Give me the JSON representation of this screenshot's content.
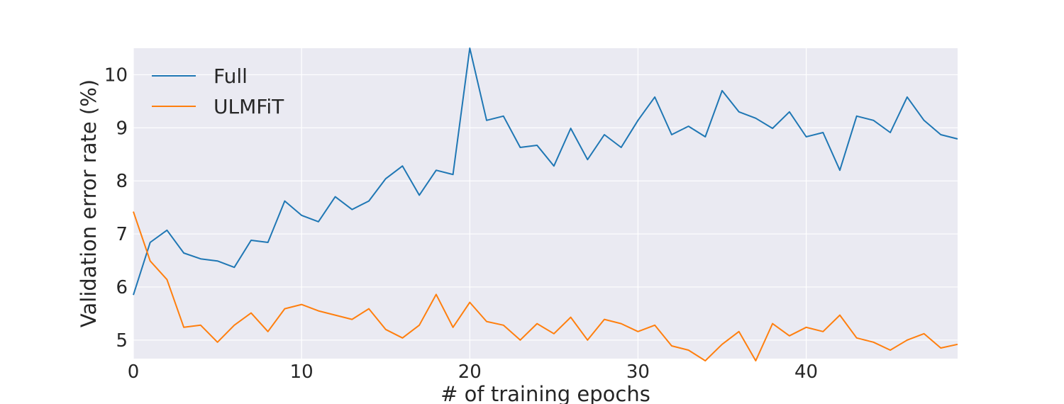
{
  "chart_data": {
    "type": "line",
    "title": "",
    "xlabel": "# of training epochs",
    "ylabel": "Validation error rate (%)",
    "xlim": [
      0,
      49
    ],
    "ylim": [
      4.65,
      10.5
    ],
    "xticks": [
      0,
      10,
      20,
      30,
      40
    ],
    "yticks": [
      5,
      6,
      7,
      8,
      9,
      10
    ],
    "grid": true,
    "legend_position": "top-left",
    "background": "#eaeaf2",
    "x": [
      0,
      1,
      2,
      3,
      4,
      5,
      6,
      7,
      8,
      9,
      10,
      11,
      12,
      13,
      14,
      15,
      16,
      17,
      18,
      19,
      20,
      21,
      22,
      23,
      24,
      25,
      26,
      27,
      28,
      29,
      30,
      31,
      32,
      33,
      34,
      35,
      36,
      37,
      38,
      39,
      40,
      41,
      42,
      43,
      44,
      45,
      46,
      47,
      48,
      49
    ],
    "series": [
      {
        "name": "Full",
        "color": "#1f77b4",
        "values": [
          5.85,
          6.84,
          7.07,
          6.64,
          6.53,
          6.49,
          6.37,
          6.88,
          6.84,
          7.62,
          7.35,
          7.23,
          7.7,
          7.46,
          7.62,
          8.04,
          8.28,
          7.73,
          8.2,
          8.12,
          10.5,
          9.14,
          9.22,
          8.63,
          8.67,
          8.28,
          8.99,
          8.4,
          8.87,
          8.63,
          9.14,
          9.58,
          8.87,
          9.03,
          8.83,
          9.7,
          9.3,
          9.18,
          8.99,
          9.3,
          8.83,
          8.91,
          8.2,
          9.22,
          9.14,
          8.91,
          9.58,
          9.14,
          8.87,
          8.79
        ]
      },
      {
        "name": "ULMFiT",
        "color": "#ff7f0e",
        "values": [
          7.42,
          6.49,
          6.14,
          5.24,
          5.28,
          4.96,
          5.28,
          5.51,
          5.16,
          5.59,
          5.67,
          5.55,
          5.47,
          5.39,
          5.59,
          5.2,
          5.04,
          5.28,
          5.86,
          5.24,
          5.71,
          5.35,
          5.28,
          5.0,
          5.31,
          5.12,
          5.43,
          5.0,
          5.39,
          5.31,
          5.16,
          5.28,
          4.89,
          4.81,
          4.61,
          4.92,
          5.16,
          4.61,
          5.31,
          5.08,
          5.24,
          5.16,
          5.47,
          5.04,
          4.96,
          4.81,
          5.0,
          5.12,
          4.85,
          4.92
        ]
      }
    ]
  }
}
